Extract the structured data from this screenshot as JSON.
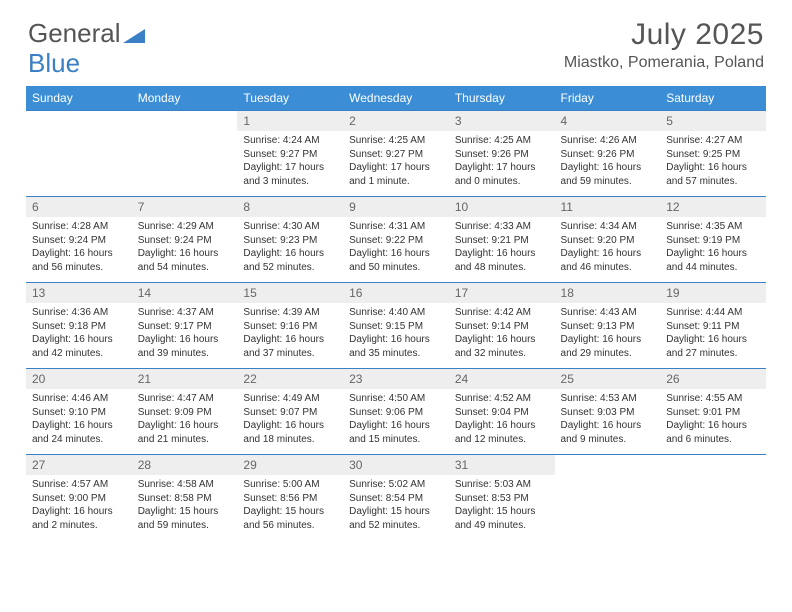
{
  "brand": {
    "part1": "General",
    "part2": "Blue"
  },
  "title": "July 2025",
  "location": "Miastko, Pomerania, Poland",
  "colors": {
    "header_bg": "#3b8ed6",
    "rule": "#3b7fc4",
    "daynum_bg": "#eeeeee",
    "text": "#333333",
    "muted": "#555555"
  },
  "day_names": [
    "Sunday",
    "Monday",
    "Tuesday",
    "Wednesday",
    "Thursday",
    "Friday",
    "Saturday"
  ],
  "weeks": [
    [
      null,
      null,
      {
        "n": "1",
        "sr": "Sunrise: 4:24 AM",
        "ss": "Sunset: 9:27 PM",
        "dl": "Daylight: 17 hours and 3 minutes."
      },
      {
        "n": "2",
        "sr": "Sunrise: 4:25 AM",
        "ss": "Sunset: 9:27 PM",
        "dl": "Daylight: 17 hours and 1 minute."
      },
      {
        "n": "3",
        "sr": "Sunrise: 4:25 AM",
        "ss": "Sunset: 9:26 PM",
        "dl": "Daylight: 17 hours and 0 minutes."
      },
      {
        "n": "4",
        "sr": "Sunrise: 4:26 AM",
        "ss": "Sunset: 9:26 PM",
        "dl": "Daylight: 16 hours and 59 minutes."
      },
      {
        "n": "5",
        "sr": "Sunrise: 4:27 AM",
        "ss": "Sunset: 9:25 PM",
        "dl": "Daylight: 16 hours and 57 minutes."
      }
    ],
    [
      {
        "n": "6",
        "sr": "Sunrise: 4:28 AM",
        "ss": "Sunset: 9:24 PM",
        "dl": "Daylight: 16 hours and 56 minutes."
      },
      {
        "n": "7",
        "sr": "Sunrise: 4:29 AM",
        "ss": "Sunset: 9:24 PM",
        "dl": "Daylight: 16 hours and 54 minutes."
      },
      {
        "n": "8",
        "sr": "Sunrise: 4:30 AM",
        "ss": "Sunset: 9:23 PM",
        "dl": "Daylight: 16 hours and 52 minutes."
      },
      {
        "n": "9",
        "sr": "Sunrise: 4:31 AM",
        "ss": "Sunset: 9:22 PM",
        "dl": "Daylight: 16 hours and 50 minutes."
      },
      {
        "n": "10",
        "sr": "Sunrise: 4:33 AM",
        "ss": "Sunset: 9:21 PM",
        "dl": "Daylight: 16 hours and 48 minutes."
      },
      {
        "n": "11",
        "sr": "Sunrise: 4:34 AM",
        "ss": "Sunset: 9:20 PM",
        "dl": "Daylight: 16 hours and 46 minutes."
      },
      {
        "n": "12",
        "sr": "Sunrise: 4:35 AM",
        "ss": "Sunset: 9:19 PM",
        "dl": "Daylight: 16 hours and 44 minutes."
      }
    ],
    [
      {
        "n": "13",
        "sr": "Sunrise: 4:36 AM",
        "ss": "Sunset: 9:18 PM",
        "dl": "Daylight: 16 hours and 42 minutes."
      },
      {
        "n": "14",
        "sr": "Sunrise: 4:37 AM",
        "ss": "Sunset: 9:17 PM",
        "dl": "Daylight: 16 hours and 39 minutes."
      },
      {
        "n": "15",
        "sr": "Sunrise: 4:39 AM",
        "ss": "Sunset: 9:16 PM",
        "dl": "Daylight: 16 hours and 37 minutes."
      },
      {
        "n": "16",
        "sr": "Sunrise: 4:40 AM",
        "ss": "Sunset: 9:15 PM",
        "dl": "Daylight: 16 hours and 35 minutes."
      },
      {
        "n": "17",
        "sr": "Sunrise: 4:42 AM",
        "ss": "Sunset: 9:14 PM",
        "dl": "Daylight: 16 hours and 32 minutes."
      },
      {
        "n": "18",
        "sr": "Sunrise: 4:43 AM",
        "ss": "Sunset: 9:13 PM",
        "dl": "Daylight: 16 hours and 29 minutes."
      },
      {
        "n": "19",
        "sr": "Sunrise: 4:44 AM",
        "ss": "Sunset: 9:11 PM",
        "dl": "Daylight: 16 hours and 27 minutes."
      }
    ],
    [
      {
        "n": "20",
        "sr": "Sunrise: 4:46 AM",
        "ss": "Sunset: 9:10 PM",
        "dl": "Daylight: 16 hours and 24 minutes."
      },
      {
        "n": "21",
        "sr": "Sunrise: 4:47 AM",
        "ss": "Sunset: 9:09 PM",
        "dl": "Daylight: 16 hours and 21 minutes."
      },
      {
        "n": "22",
        "sr": "Sunrise: 4:49 AM",
        "ss": "Sunset: 9:07 PM",
        "dl": "Daylight: 16 hours and 18 minutes."
      },
      {
        "n": "23",
        "sr": "Sunrise: 4:50 AM",
        "ss": "Sunset: 9:06 PM",
        "dl": "Daylight: 16 hours and 15 minutes."
      },
      {
        "n": "24",
        "sr": "Sunrise: 4:52 AM",
        "ss": "Sunset: 9:04 PM",
        "dl": "Daylight: 16 hours and 12 minutes."
      },
      {
        "n": "25",
        "sr": "Sunrise: 4:53 AM",
        "ss": "Sunset: 9:03 PM",
        "dl": "Daylight: 16 hours and 9 minutes."
      },
      {
        "n": "26",
        "sr": "Sunrise: 4:55 AM",
        "ss": "Sunset: 9:01 PM",
        "dl": "Daylight: 16 hours and 6 minutes."
      }
    ],
    [
      {
        "n": "27",
        "sr": "Sunrise: 4:57 AM",
        "ss": "Sunset: 9:00 PM",
        "dl": "Daylight: 16 hours and 2 minutes."
      },
      {
        "n": "28",
        "sr": "Sunrise: 4:58 AM",
        "ss": "Sunset: 8:58 PM",
        "dl": "Daylight: 15 hours and 59 minutes."
      },
      {
        "n": "29",
        "sr": "Sunrise: 5:00 AM",
        "ss": "Sunset: 8:56 PM",
        "dl": "Daylight: 15 hours and 56 minutes."
      },
      {
        "n": "30",
        "sr": "Sunrise: 5:02 AM",
        "ss": "Sunset: 8:54 PM",
        "dl": "Daylight: 15 hours and 52 minutes."
      },
      {
        "n": "31",
        "sr": "Sunrise: 5:03 AM",
        "ss": "Sunset: 8:53 PM",
        "dl": "Daylight: 15 hours and 49 minutes."
      },
      null,
      null
    ]
  ]
}
